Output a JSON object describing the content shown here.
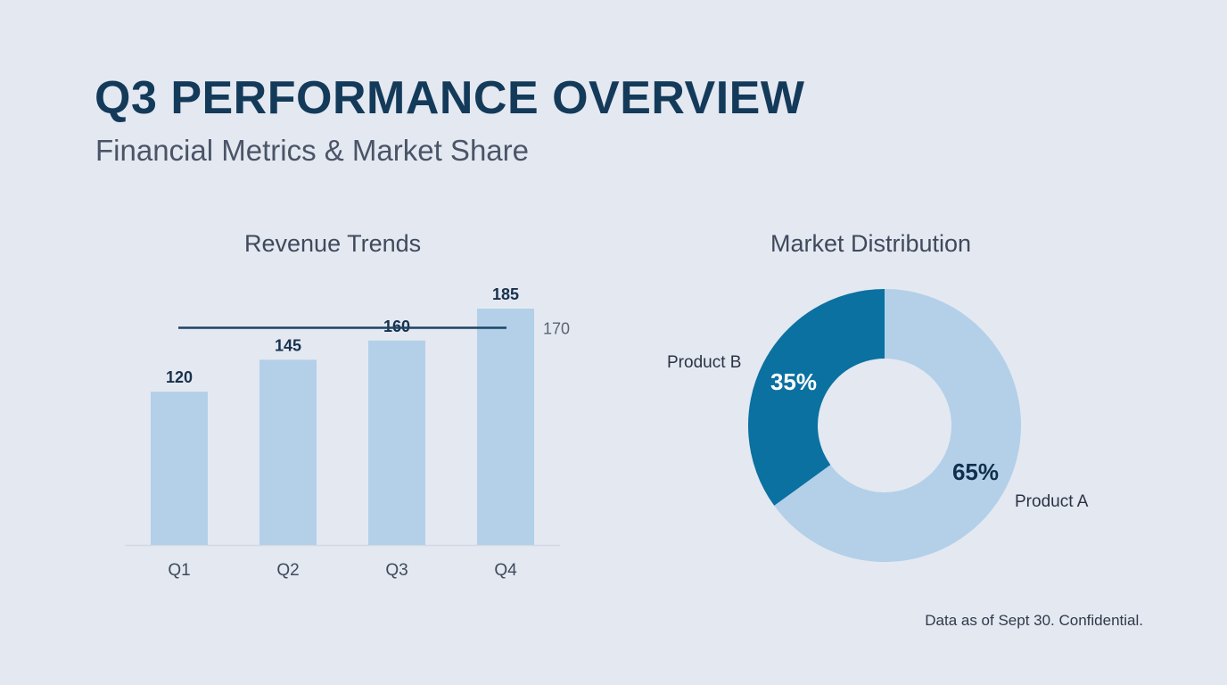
{
  "header": {
    "title": "Q3 PERFORMANCE OVERVIEW",
    "subtitle": "Financial Metrics & Market Share"
  },
  "footer": "Data as of Sept 30. Confidential.",
  "colors": {
    "bar": "#b3d0e8",
    "line": "#1d4466",
    "product_a": "#b3d0e8",
    "product_b": "#0a71a0",
    "title": "#143a5a"
  },
  "chart_data": [
    {
      "type": "bar",
      "title": "Revenue Trends",
      "categories": [
        "Q1",
        "Q2",
        "Q3",
        "Q4"
      ],
      "values": [
        120,
        145,
        160,
        185
      ],
      "data_labels": [
        "120",
        "145",
        "160",
        "185"
      ],
      "reference_line": {
        "value": 170,
        "label": "170"
      },
      "ylim": [
        0,
        185
      ],
      "grid": false,
      "xlabel": "",
      "ylabel": ""
    },
    {
      "type": "pie",
      "variant": "donut",
      "title": "Market Distribution",
      "slices": [
        {
          "name": "Product A",
          "value": 65,
          "label": "65%"
        },
        {
          "name": "Product B",
          "value": 35,
          "label": "35%"
        }
      ]
    }
  ]
}
